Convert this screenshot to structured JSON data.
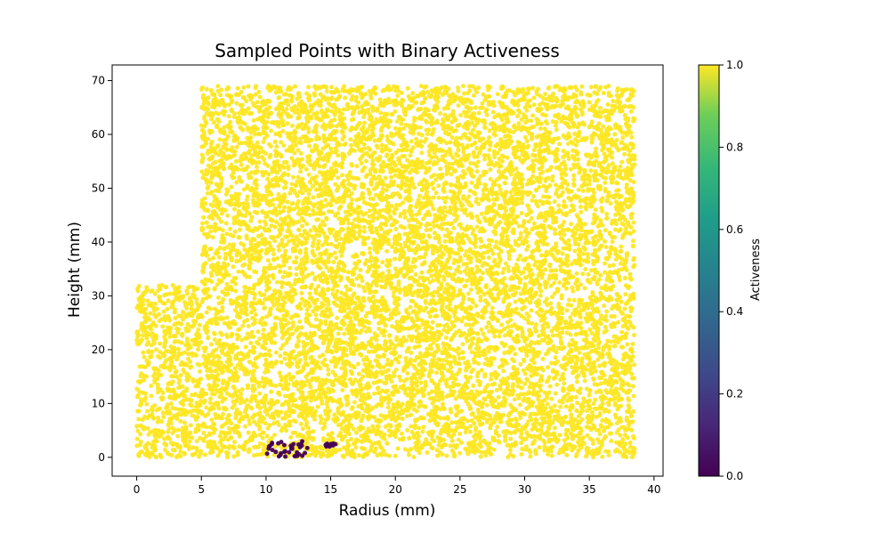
{
  "chart_data": {
    "type": "scatter",
    "title": "Sampled Points with Binary Activeness",
    "xlabel": "Radius (mm)",
    "ylabel": "Height (mm)",
    "xlim": [
      -1.9,
      40.7
    ],
    "ylim": [
      -3.5,
      72.9
    ],
    "x_ticks": [
      "0",
      "5",
      "10",
      "15",
      "20",
      "25",
      "30",
      "35",
      "40"
    ],
    "y_ticks": [
      "0",
      "10",
      "20",
      "30",
      "40",
      "50",
      "60",
      "70"
    ],
    "grid": false,
    "colorbar": {
      "label": "Activeness",
      "range": [
        0.0,
        1.0
      ],
      "ticks": [
        "0.0",
        "0.2",
        "0.4",
        "0.6",
        "0.8",
        "1.0"
      ],
      "colormap": "viridis"
    },
    "colors": {
      "active": "#fde725",
      "inactive": "#440154"
    },
    "series": [
      {
        "value": 1.0,
        "regions": [
          {
            "x": [
              0.0,
              5.0
            ],
            "y": [
              0.0,
              32.0
            ]
          },
          {
            "x": [
              5.0,
              38.5
            ],
            "y": [
              0.0,
              69.0
            ]
          }
        ]
      },
      {
        "value": 0.0,
        "regions": [
          {
            "x": [
              9.8,
              13.2
            ],
            "y": [
              0.0,
              3.0
            ]
          },
          {
            "x": [
              14.6,
              15.4
            ],
            "y": [
              2.0,
              2.6
            ]
          }
        ]
      }
    ]
  }
}
